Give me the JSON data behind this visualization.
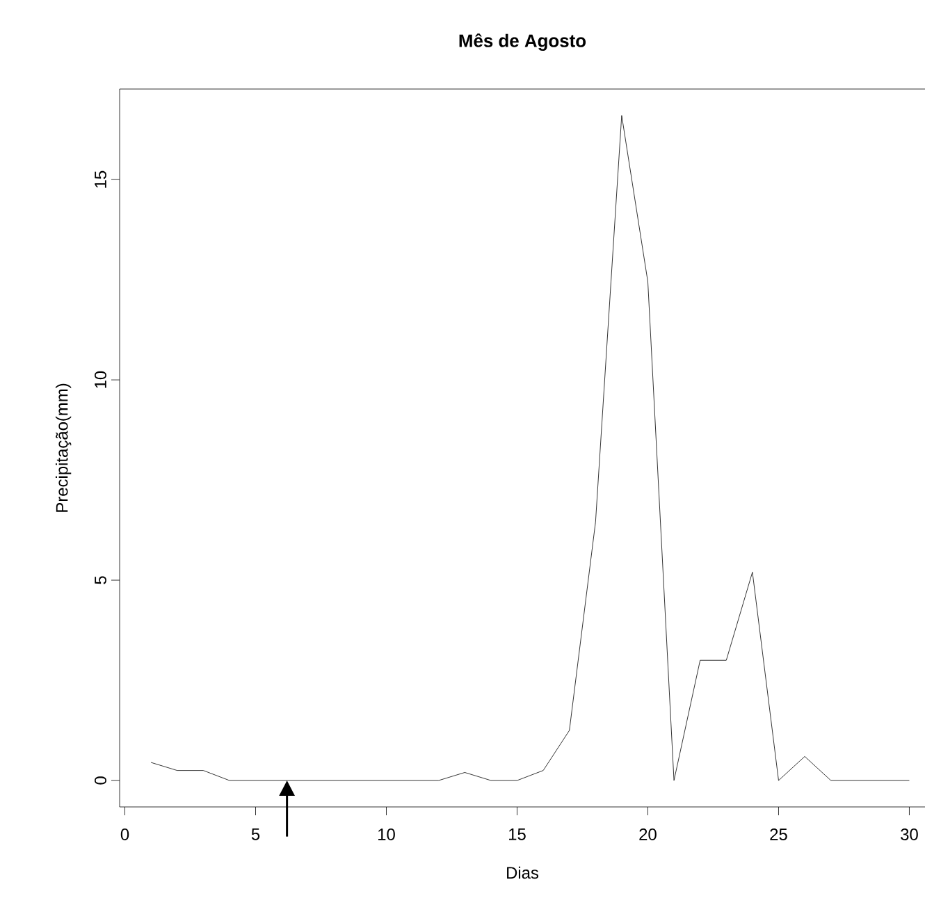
{
  "chart_data": {
    "type": "line",
    "title": "Mês de Agosto",
    "xlabel": "Dias",
    "ylabel": "Precipitação(mm)",
    "x": [
      1,
      2,
      3,
      4,
      5,
      6,
      7,
      8,
      9,
      10,
      11,
      12,
      13,
      14,
      15,
      16,
      17,
      18,
      19,
      20,
      21,
      22,
      23,
      24,
      25,
      26,
      27,
      28,
      29,
      30
    ],
    "series": [
      {
        "color": "#000000",
        "values": [
          0.45,
          0.25,
          0.25,
          0,
          0,
          0,
          0,
          0,
          0,
          0,
          0,
          0,
          0.2,
          0,
          0,
          0.25,
          1.25,
          6.45,
          16.6,
          12.45,
          0,
          3.0,
          3.0,
          5.2,
          0,
          0.6,
          0,
          0,
          0,
          0
        ]
      }
    ],
    "xlim": [
      -0.2,
      30.6
    ],
    "ylim": [
      -0.66,
      17.26
    ],
    "xticks": [
      0,
      5,
      10,
      15,
      20,
      25,
      30
    ],
    "yticks": [
      0,
      5,
      10,
      15
    ],
    "marker": "none",
    "line_style": "solid",
    "grid": false
  }
}
